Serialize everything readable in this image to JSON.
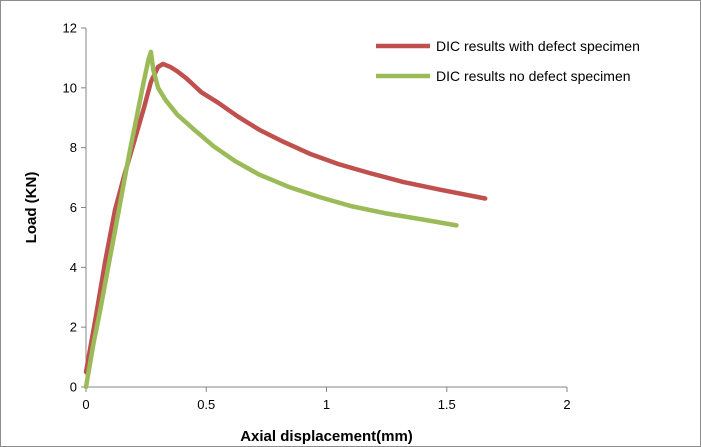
{
  "chart_data": {
    "type": "line",
    "title": "",
    "xlabel": "Axial displacement(mm)",
    "ylabel": "Load (KN)",
    "xlim": [
      0,
      2
    ],
    "ylim": [
      0,
      12
    ],
    "xticks": [
      0,
      0.5,
      1,
      1.5,
      2
    ],
    "xtick_labels": [
      "0",
      "0.5",
      "1",
      "1.5",
      "2"
    ],
    "yticks": [
      0,
      2,
      4,
      6,
      8,
      10,
      12
    ],
    "ytick_labels": [
      "0",
      "2",
      "4",
      "6",
      "8",
      "10",
      "12"
    ],
    "grid": false,
    "legend_position": "top-right",
    "series": [
      {
        "name": "DIC results with defect specimen",
        "color": "#c0504d",
        "x": [
          0,
          0.04,
          0.08,
          0.12,
          0.16,
          0.2,
          0.24,
          0.27,
          0.3,
          0.32,
          0.35,
          0.38,
          0.42,
          0.48,
          0.55,
          0.63,
          0.72,
          0.82,
          0.93,
          1.05,
          1.18,
          1.32,
          1.47,
          1.66
        ],
        "y": [
          0.5,
          2.3,
          4.2,
          5.9,
          7.1,
          8.2,
          9.3,
          10.2,
          10.7,
          10.8,
          10.7,
          10.55,
          10.3,
          9.85,
          9.5,
          9.05,
          8.6,
          8.2,
          7.8,
          7.45,
          7.15,
          6.85,
          6.6,
          6.3
        ]
      },
      {
        "name": "DIC results no defect specimen",
        "color": "#9bbb59",
        "x": [
          0,
          0.03,
          0.06,
          0.09,
          0.12,
          0.15,
          0.18,
          0.21,
          0.24,
          0.26,
          0.27,
          0.28,
          0.3,
          0.33,
          0.38,
          0.45,
          0.53,
          0.62,
          0.72,
          0.84,
          0.97,
          1.1,
          1.25,
          1.4,
          1.54
        ],
        "y": [
          0,
          1.4,
          2.6,
          3.9,
          5.2,
          6.5,
          7.8,
          9.0,
          10.2,
          10.95,
          11.2,
          10.6,
          10.0,
          9.6,
          9.1,
          8.6,
          8.05,
          7.55,
          7.1,
          6.7,
          6.35,
          6.05,
          5.8,
          5.6,
          5.4
        ]
      }
    ]
  }
}
